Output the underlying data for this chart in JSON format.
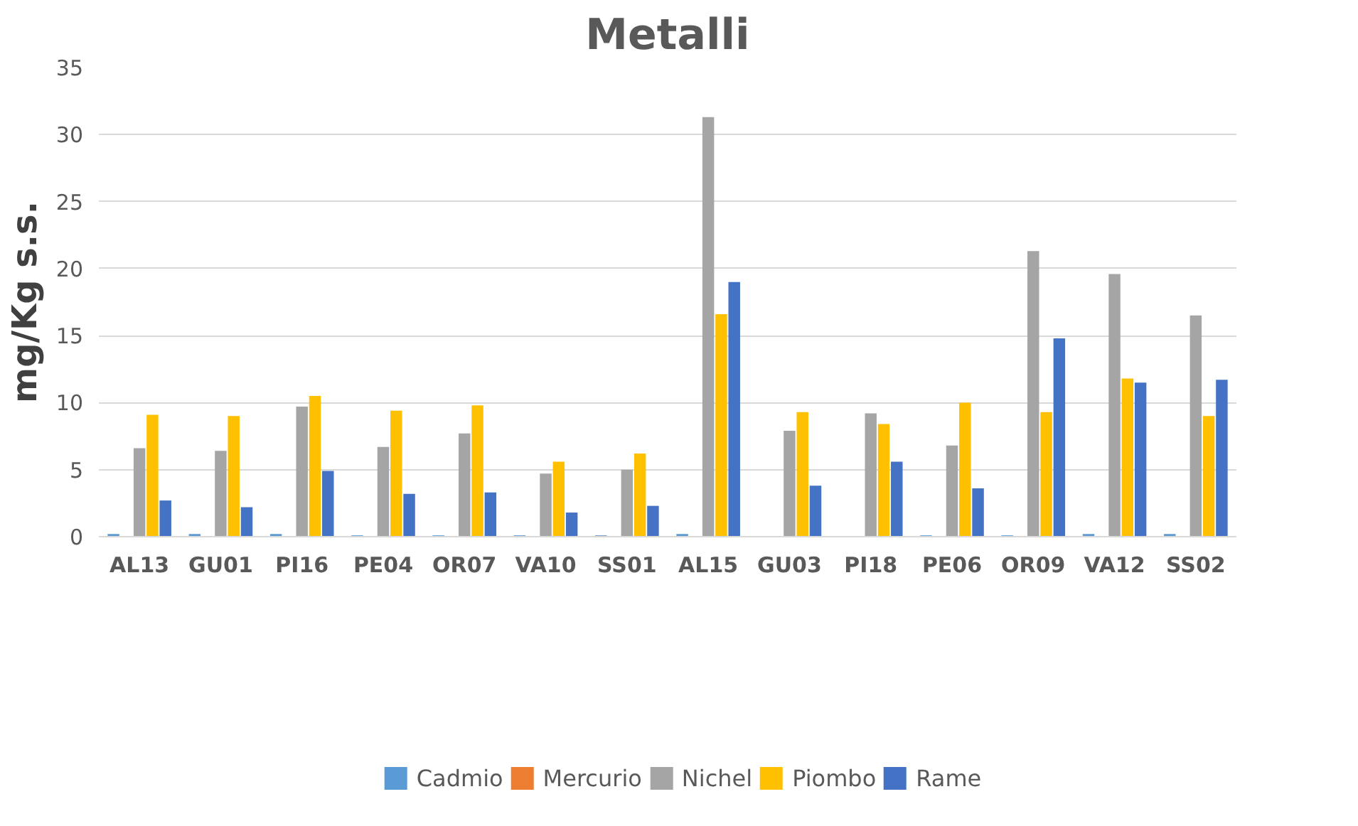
{
  "chart_data": {
    "type": "bar",
    "title": "Metalli",
    "ylabel": "mg/Kg s.s.",
    "categories": [
      "AL13",
      "GU01",
      "PI16",
      "PE04",
      "OR07",
      "VA10",
      "SS01",
      "AL15",
      "GU03",
      "PI18",
      "PE06",
      "OR09",
      "VA12",
      "SS02"
    ],
    "series": [
      {
        "name": "Cadmio",
        "color": "#5b9bd5",
        "values": [
          0.2,
          0.2,
          0.2,
          0.1,
          0.1,
          0.1,
          0.1,
          0.2,
          null,
          null,
          0.1,
          0.1,
          0.2,
          0.2
        ]
      },
      {
        "name": "Mercurio",
        "color": "#ed7d31",
        "values": [
          0,
          0,
          0,
          0,
          0,
          0,
          0,
          0,
          0,
          0,
          0,
          0,
          0,
          0
        ]
      },
      {
        "name": "Nichel",
        "color": "#a5a5a5",
        "values": [
          6.6,
          6.4,
          9.7,
          6.7,
          7.7,
          4.7,
          5.0,
          31.3,
          7.9,
          9.2,
          6.8,
          21.3,
          19.6,
          16.5
        ]
      },
      {
        "name": "Piombo",
        "color": "#ffc000",
        "values": [
          9.1,
          9.0,
          10.5,
          9.4,
          9.8,
          5.6,
          6.2,
          16.6,
          9.3,
          8.4,
          10.0,
          9.3,
          11.8,
          9.0
        ]
      },
      {
        "name": "Rame",
        "color": "#4472c4",
        "values": [
          2.7,
          2.2,
          4.9,
          3.2,
          3.3,
          1.8,
          2.3,
          19.0,
          3.8,
          5.6,
          3.6,
          14.8,
          11.5,
          11.7
        ]
      }
    ],
    "ylim": [
      0,
      35
    ],
    "yticks": [
      0,
      5,
      10,
      15,
      20,
      25,
      30,
      35
    ],
    "grid": "y",
    "legend": "bottom"
  }
}
